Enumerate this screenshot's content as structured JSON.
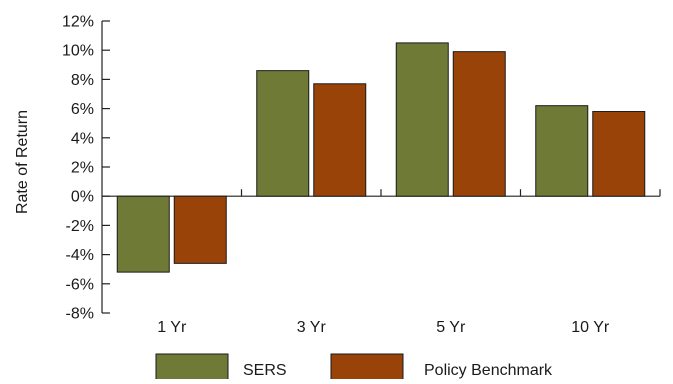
{
  "chart_data": {
    "type": "bar",
    "ylabel": "Rate of Return",
    "categories": [
      "1 Yr",
      "3 Yr",
      "5 Yr",
      "10 Yr"
    ],
    "series": [
      {
        "name": "SERS",
        "values": [
          -5.2,
          8.6,
          10.5,
          6.2
        ],
        "color": "#6f7a37"
      },
      {
        "name": "Policy Benchmark",
        "values": [
          -4.6,
          7.7,
          9.9,
          5.8
        ],
        "color": "#9a4309"
      }
    ],
    "ylim": [
      -8,
      12
    ],
    "yticks": [
      -8,
      -6,
      -4,
      -2,
      0,
      2,
      4,
      6,
      8,
      10,
      12
    ],
    "ytick_labels": [
      "-8%",
      "-6%",
      "-4%",
      "-2%",
      "0%",
      "2%",
      "4%",
      "6%",
      "8%",
      "10%",
      "12%"
    ],
    "legend_position": "bottom-center",
    "grid": false
  }
}
